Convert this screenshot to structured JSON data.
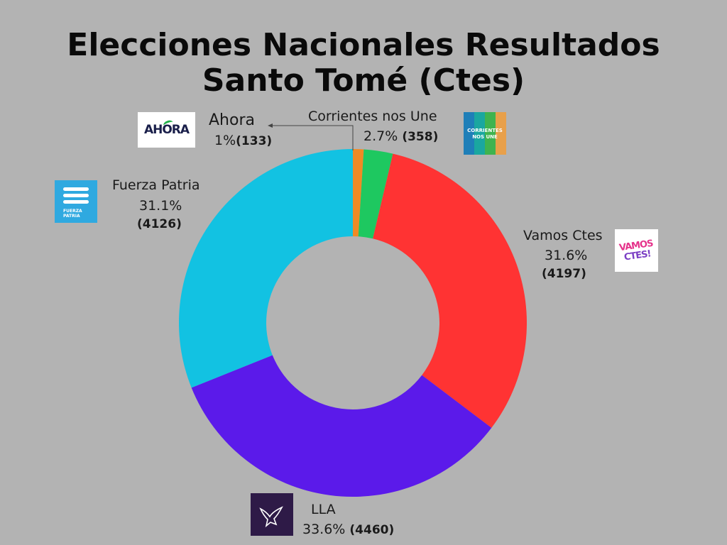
{
  "header": {
    "title_line1": "Elecciones Nacionales Resultados",
    "title_line2": "Santo Tomé (Ctes)"
  },
  "chart_data": {
    "type": "pie",
    "donut": true,
    "title": "Elecciones Nacionales Resultados Santo Tomé (Ctes)",
    "slices": [
      {
        "name": "Ahora",
        "percent": "1%",
        "votes": "(133)",
        "value": 133,
        "color": "#f08a24"
      },
      {
        "name": "Corrientes nos Une",
        "percent": "2.7%",
        "votes": "(358)",
        "value": 358,
        "color": "#1ec860"
      },
      {
        "name": "Vamos Ctes",
        "percent": "31.6%",
        "votes": "(4197)",
        "value": 4197,
        "color": "#ff3333"
      },
      {
        "name": "LLA",
        "percent": "33.6%",
        "votes": "(4460)",
        "value": 4460,
        "color": "#5b1aea"
      },
      {
        "name": "Fuerza Patria",
        "percent": "31.1%",
        "votes": "(4126)",
        "value": 4126,
        "color": "#12c2e2"
      }
    ]
  },
  "logos": {
    "ahora_text": "AHORA",
    "corrientes_text_1": "CORRIENTES",
    "corrientes_text_2": "NOS UNE",
    "fuerza_text_1": "FUERZA",
    "fuerza_text_2": "PATRIA",
    "vamos_text_1": "VAMOS",
    "vamos_text_2": "CTES!"
  }
}
